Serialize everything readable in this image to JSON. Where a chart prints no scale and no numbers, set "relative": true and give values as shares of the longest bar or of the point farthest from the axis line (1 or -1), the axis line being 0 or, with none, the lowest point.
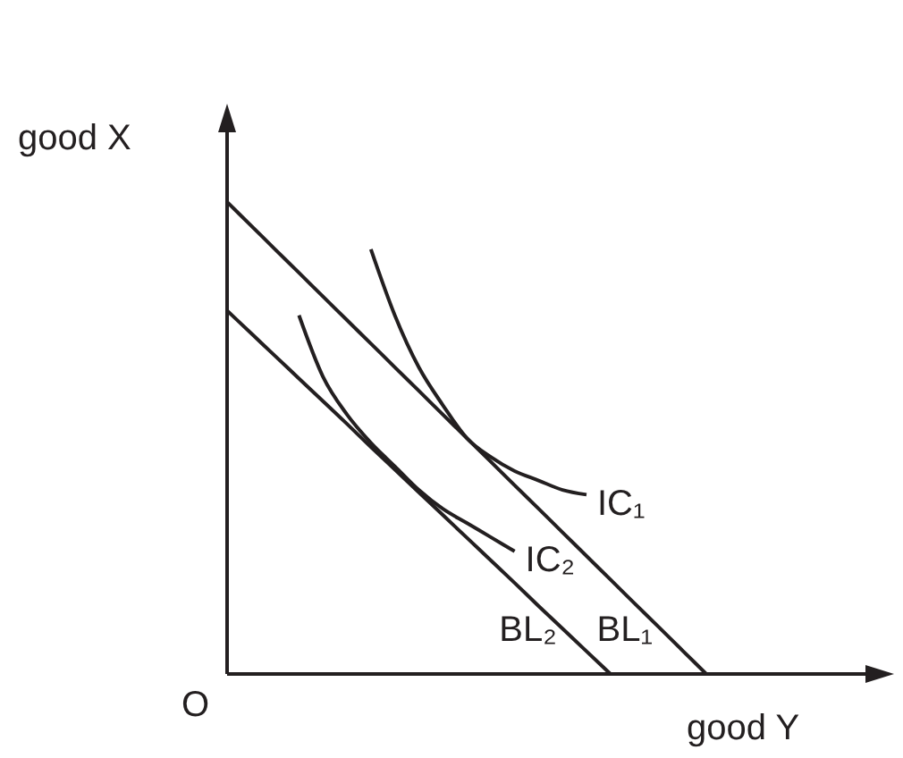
{
  "chart_data": {
    "type": "line",
    "relative": true,
    "xlabel": "good Y",
    "ylabel": "good X",
    "annotations": [
      "O"
    ],
    "grid": false,
    "marker": "none",
    "line_style": "solid",
    "categories": [
      null,
      null,
      null,
      null,
      null,
      null,
      null,
      null,
      null,
      null,
      null,
      null,
      null,
      null,
      null,
      null,
      null,
      null,
      null,
      null,
      null,
      null,
      null,
      null,
      null,
      null,
      null,
      null
    ],
    "series": [
      {
        "name": "BL₁",
        "color": "#231f20",
        "values": [
          1,
          0.95,
          0.9,
          0.85,
          0.8,
          0.75,
          0.7,
          0.65,
          0.6,
          0.55,
          0.5,
          0.45,
          0.4,
          0.35,
          0.3,
          0.25,
          0.2,
          0.15,
          0.1,
          0.05,
          0,
          null,
          null,
          null,
          null,
          null,
          null,
          null
        ]
      },
      {
        "name": "BL₂",
        "color": "#231f20",
        "values": [
          0.77,
          0.722,
          0.674,
          0.626,
          0.578,
          0.53,
          0.481,
          0.433,
          0.385,
          0.337,
          0.289,
          0.241,
          0.193,
          0.144,
          0.096,
          0.048,
          0,
          null,
          null,
          null,
          null,
          null,
          null,
          null,
          null,
          null,
          null,
          null
        ]
      },
      {
        "name": "IC₁",
        "color": "#231f20",
        "values": [
          null,
          null,
          null,
          null,
          null,
          null,
          0.9,
          0.76,
          0.65,
          0.57,
          0.5,
          0.46,
          0.43,
          0.41,
          0.39,
          0.38,
          null,
          null,
          null,
          null,
          null,
          null,
          null,
          null,
          null,
          null,
          null,
          null
        ]
      },
      {
        "name": "IC₂",
        "color": "#231f20",
        "values": [
          null,
          null,
          null,
          0.76,
          0.63,
          0.55,
          0.49,
          0.44,
          0.39,
          0.35,
          0.32,
          0.29,
          0.26,
          null,
          null,
          null,
          null,
          null,
          null,
          null,
          null,
          null,
          null,
          null,
          null,
          null,
          null,
          null
        ]
      }
    ]
  }
}
